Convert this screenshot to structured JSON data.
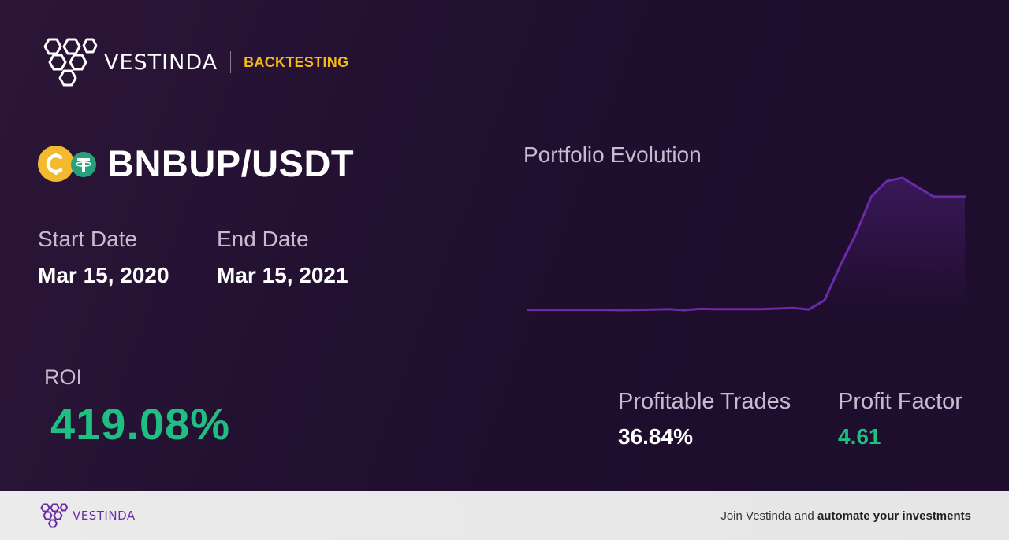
{
  "brand": {
    "name": "VESTINDA",
    "tag": "BACKTESTING"
  },
  "pair": {
    "name": "BNBUP/USDT",
    "base_icon": "bnbup-coin-icon",
    "quote_icon": "tether-icon"
  },
  "dates": {
    "start_label": "Start Date",
    "start_value": "Mar 15, 2020",
    "end_label": "End Date",
    "end_value": "Mar 15, 2021"
  },
  "roi": {
    "label": "ROI",
    "value": "419.08%"
  },
  "chart": {
    "title": "Portfolio Evolution"
  },
  "chart_data": {
    "type": "line",
    "title": "Portfolio Evolution",
    "line_color": "#6a2ba8",
    "series": [
      {
        "values": [
          1.0,
          1.0,
          1.0,
          1.0,
          1.0,
          1.0,
          0.99,
          1.0,
          1.01,
          1.02,
          0.99,
          1.03,
          1.02,
          1.02,
          1.02,
          1.02,
          1.04,
          1.06,
          1.01,
          1.3,
          2.4,
          3.4,
          4.6,
          5.1,
          5.2,
          4.9,
          4.6,
          4.6,
          4.6
        ]
      }
    ]
  },
  "stats": {
    "profitable_label": "Profitable Trades",
    "profitable_value": "36.84%",
    "factor_label": "Profit Factor",
    "factor_value": "4.61"
  },
  "footer": {
    "brand": "VESTINDA",
    "cta_prefix": "Join Vestinda and ",
    "cta_bold": "automate your investments"
  },
  "colors": {
    "accent_yellow": "#f5b915",
    "positive_green": "#1fbe83",
    "brand_purple": "#6a2ba8"
  }
}
